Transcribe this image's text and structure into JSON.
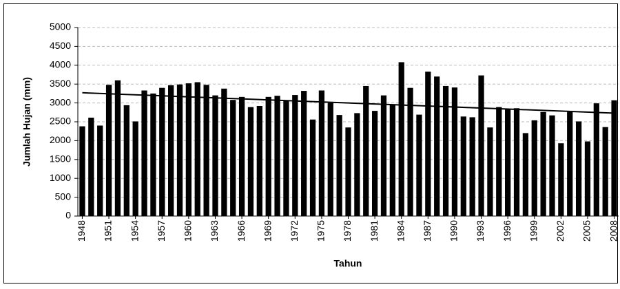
{
  "chart_data": {
    "type": "bar",
    "y_label": "Jumlah Hujan (mm)",
    "x_label": "Tahun",
    "categories": [
      "1948",
      null,
      null,
      "1951",
      null,
      null,
      "1954",
      null,
      null,
      "1957",
      null,
      null,
      "1960",
      null,
      null,
      "1963",
      null,
      null,
      "1966",
      null,
      null,
      "1969",
      null,
      null,
      "1972",
      null,
      null,
      "1975",
      null,
      null,
      "1978",
      null,
      null,
      "1981",
      null,
      null,
      "1984",
      null,
      null,
      "1987",
      null,
      null,
      "1990",
      null,
      null,
      "1993",
      null,
      null,
      "1996",
      null,
      null,
      "1999",
      null,
      null,
      "2002",
      null,
      null,
      "2005",
      null,
      null,
      "2008"
    ],
    "values": [
      2380,
      2610,
      2400,
      3480,
      3600,
      2940,
      2510,
      3330,
      3250,
      3400,
      3470,
      3490,
      3520,
      3550,
      3480,
      3200,
      3380,
      3080,
      3160,
      2890,
      2920,
      3160,
      3190,
      3060,
      3210,
      3320,
      2560,
      3330,
      3000,
      2680,
      2350,
      2730,
      3450,
      2790,
      3200,
      2940,
      4080,
      3400,
      2690,
      3830,
      3700,
      3450,
      3410,
      2640,
      2620,
      3730,
      2350,
      2890,
      2840,
      2860,
      2200,
      2540,
      2760,
      2670,
      1930,
      2790,
      2510,
      1980,
      2990,
      2360,
      3070
    ],
    "color": "#000000",
    "trendline": [
      3270,
      2730
    ],
    "ylim": [
      0,
      5000
    ],
    "yticks": [
      0,
      500,
      1000,
      1500,
      2000,
      2500,
      3000,
      3500,
      4000,
      4500,
      5000
    ],
    "grid": true
  }
}
